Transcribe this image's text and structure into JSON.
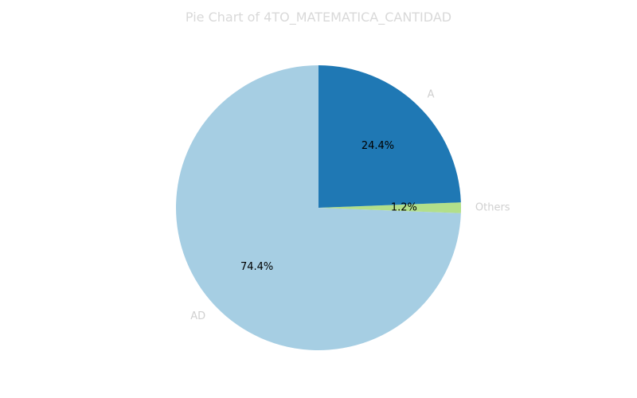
{
  "chart_data": {
    "type": "pie",
    "title": "Pie Chart of 4TO_MATEMATICA_CANTIDAD",
    "start_angle_deg": 90,
    "direction": "counterclockwise",
    "slices": [
      {
        "label": "AD",
        "value": 74.4,
        "pct_label": "74.4%",
        "color": "#a6cee3"
      },
      {
        "label": "Others",
        "value": 1.2,
        "pct_label": "1.2%",
        "color": "#b2df8a"
      },
      {
        "label": "A",
        "value": 24.4,
        "pct_label": "24.4%",
        "color": "#1f78b4"
      }
    ]
  }
}
